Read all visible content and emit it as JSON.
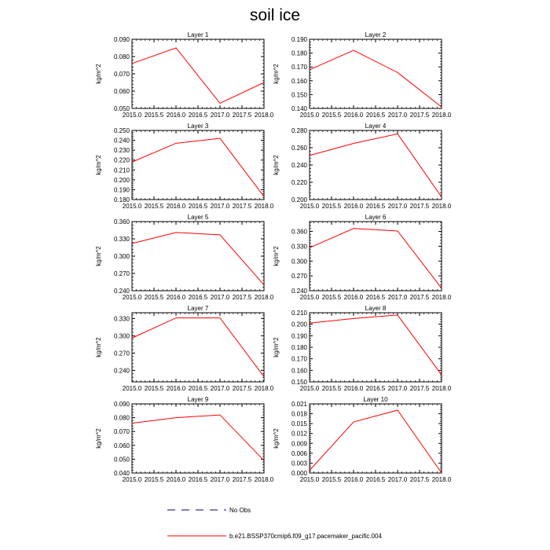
{
  "title": "soil ice",
  "legend": {
    "entries": [
      {
        "label": "No Obs",
        "color": "#000080",
        "dash": "dashed"
      },
      {
        "label": "b.e21.BSSP370cmip6.f09_g17.pacemaker_pacific.004",
        "color": "#ff0000",
        "dash": "solid"
      }
    ]
  },
  "chart_data": [
    {
      "type": "line",
      "title": "Layer 1",
      "ylabel": "kg/m^2",
      "x": [
        2015.0,
        2016.0,
        2017.0,
        2018.0
      ],
      "xticks": [
        2015.0,
        2015.5,
        2016.0,
        2016.5,
        2017.0,
        2017.5,
        2018.0
      ],
      "xtick_labels": [
        "2015.0",
        "2015.5",
        "2016.0",
        "2016.5",
        "2017.0",
        "2017.5",
        "2018.0"
      ],
      "ylim": [
        0.05,
        0.09
      ],
      "yticks": [
        0.05,
        0.06,
        0.07,
        0.08,
        0.09
      ],
      "ytick_labels": [
        "0.050",
        "0.060",
        "0.070",
        "0.080",
        "0.090"
      ],
      "series": [
        {
          "values": [
            0.076,
            0.085,
            0.053,
            0.065
          ],
          "color": "#ff0000"
        }
      ]
    },
    {
      "type": "line",
      "title": "Layer 2",
      "ylabel": "kg/m^2",
      "x": [
        2015.0,
        2016.0,
        2017.0,
        2018.0
      ],
      "xticks": [
        2015.0,
        2015.5,
        2016.0,
        2016.5,
        2017.0,
        2017.5,
        2018.0
      ],
      "xtick_labels": [
        "2015.0",
        "2015.5",
        "2016.0",
        "2016.5",
        "2017.0",
        "2017.5",
        "2018.0"
      ],
      "ylim": [
        0.14,
        0.19
      ],
      "yticks": [
        0.14,
        0.15,
        0.16,
        0.17,
        0.18,
        0.19
      ],
      "ytick_labels": [
        "0.140",
        "0.150",
        "0.160",
        "0.170",
        "0.180",
        "0.190"
      ],
      "series": [
        {
          "values": [
            0.168,
            0.182,
            0.166,
            0.141
          ],
          "color": "#ff0000"
        }
      ]
    },
    {
      "type": "line",
      "title": "Layer 3",
      "ylabel": "kg/m^2",
      "x": [
        2015.0,
        2016.0,
        2017.0,
        2018.0
      ],
      "xticks": [
        2015.0,
        2015.5,
        2016.0,
        2016.5,
        2017.0,
        2017.5,
        2018.0
      ],
      "xtick_labels": [
        "2015.0",
        "2015.5",
        "2016.0",
        "2016.5",
        "2017.0",
        "2017.5",
        "2018.0"
      ],
      "ylim": [
        0.18,
        0.25
      ],
      "yticks": [
        0.18,
        0.19,
        0.2,
        0.21,
        0.22,
        0.23,
        0.24,
        0.25
      ],
      "ytick_labels": [
        "0.180",
        "0.190",
        "0.200",
        "0.210",
        "0.220",
        "0.230",
        "0.240",
        "0.250"
      ],
      "series": [
        {
          "values": [
            0.218,
            0.237,
            0.242,
            0.183
          ],
          "color": "#ff0000"
        }
      ]
    },
    {
      "type": "line",
      "title": "Layer 4",
      "ylabel": "kg/m^2",
      "x": [
        2015.0,
        2016.0,
        2017.0,
        2018.0
      ],
      "xticks": [
        2015.0,
        2015.5,
        2016.0,
        2016.5,
        2017.0,
        2017.5,
        2018.0
      ],
      "xtick_labels": [
        "2015.0",
        "2015.5",
        "2016.0",
        "2016.5",
        "2017.0",
        "2017.5",
        "2018.0"
      ],
      "ylim": [
        0.2,
        0.28
      ],
      "yticks": [
        0.2,
        0.22,
        0.24,
        0.26,
        0.28
      ],
      "ytick_labels": [
        "0.200",
        "0.220",
        "0.240",
        "0.260",
        "0.280"
      ],
      "series": [
        {
          "values": [
            0.251,
            0.265,
            0.276,
            0.203
          ],
          "color": "#ff0000"
        }
      ]
    },
    {
      "type": "line",
      "title": "Layer 5",
      "ylabel": "kg/m^2",
      "x": [
        2015.0,
        2016.0,
        2017.0,
        2018.0
      ],
      "xticks": [
        2015.0,
        2015.5,
        2016.0,
        2016.5,
        2017.0,
        2017.5,
        2018.0
      ],
      "xtick_labels": [
        "2015.0",
        "2015.5",
        "2016.0",
        "2016.5",
        "2017.0",
        "2017.5",
        "2018.0"
      ],
      "ylim": [
        0.24,
        0.36
      ],
      "yticks": [
        0.24,
        0.27,
        0.3,
        0.33,
        0.36
      ],
      "ytick_labels": [
        "0.240",
        "0.270",
        "0.300",
        "0.330",
        "0.360"
      ],
      "series": [
        {
          "values": [
            0.322,
            0.341,
            0.337,
            0.25
          ],
          "color": "#ff0000"
        }
      ]
    },
    {
      "type": "line",
      "title": "Layer 6",
      "ylabel": "kg/m^2",
      "x": [
        2015.0,
        2016.0,
        2017.0,
        2018.0
      ],
      "xticks": [
        2015.0,
        2015.5,
        2016.0,
        2016.5,
        2017.0,
        2017.5,
        2018.0
      ],
      "xtick_labels": [
        "2015.0",
        "2015.5",
        "2016.0",
        "2016.5",
        "2017.0",
        "2017.5",
        "2018.0"
      ],
      "ylim": [
        0.24,
        0.38
      ],
      "yticks": [
        0.24,
        0.27,
        0.3,
        0.33,
        0.36
      ],
      "ytick_labels": [
        "0.240",
        "0.270",
        "0.300",
        "0.330",
        "0.360"
      ],
      "series": [
        {
          "values": [
            0.327,
            0.366,
            0.361,
            0.245
          ],
          "color": "#ff0000"
        }
      ]
    },
    {
      "type": "line",
      "title": "Layer 7",
      "ylabel": "kg/m^2",
      "x": [
        2015.0,
        2016.0,
        2017.0,
        2018.0
      ],
      "xticks": [
        2015.0,
        2015.5,
        2016.0,
        2016.5,
        2017.0,
        2017.5,
        2018.0
      ],
      "xtick_labels": [
        "2015.0",
        "2015.5",
        "2016.0",
        "2016.5",
        "2017.0",
        "2017.5",
        "2018.0"
      ],
      "ylim": [
        0.22,
        0.34
      ],
      "yticks": [
        0.24,
        0.27,
        0.3,
        0.33
      ],
      "ytick_labels": [
        "0.240",
        "0.270",
        "0.300",
        "0.330"
      ],
      "series": [
        {
          "values": [
            0.296,
            0.331,
            0.331,
            0.229
          ],
          "color": "#ff0000"
        }
      ]
    },
    {
      "type": "line",
      "title": "Layer 8",
      "ylabel": "kg/m^2",
      "x": [
        2015.0,
        2016.0,
        2017.0,
        2018.0
      ],
      "xticks": [
        2015.0,
        2015.5,
        2016.0,
        2016.5,
        2017.0,
        2017.5,
        2018.0
      ],
      "xtick_labels": [
        "2015.0",
        "2015.5",
        "2016.0",
        "2016.5",
        "2017.0",
        "2017.5",
        "2018.0"
      ],
      "ylim": [
        0.15,
        0.21
      ],
      "yticks": [
        0.15,
        0.16,
        0.17,
        0.18,
        0.19,
        0.2,
        0.21
      ],
      "ytick_labels": [
        "0.150",
        "0.160",
        "0.170",
        "0.180",
        "0.190",
        "0.200",
        "0.210"
      ],
      "series": [
        {
          "values": [
            0.201,
            0.205,
            0.208,
            0.156
          ],
          "color": "#ff0000"
        }
      ]
    },
    {
      "type": "line",
      "title": "Layer 9",
      "ylabel": "kg/m^2",
      "x": [
        2015.0,
        2016.0,
        2017.0,
        2018.0
      ],
      "xticks": [
        2015.0,
        2015.5,
        2016.0,
        2016.5,
        2017.0,
        2017.5,
        2018.0
      ],
      "xtick_labels": [
        "2015.0",
        "2015.5",
        "2016.0",
        "2016.5",
        "2017.0",
        "2017.5",
        "2018.0"
      ],
      "ylim": [
        0.04,
        0.09
      ],
      "yticks": [
        0.04,
        0.05,
        0.06,
        0.07,
        0.08,
        0.09
      ],
      "ytick_labels": [
        "0.040",
        "0.050",
        "0.060",
        "0.070",
        "0.080",
        "0.090"
      ],
      "series": [
        {
          "values": [
            0.076,
            0.08,
            0.082,
            0.049
          ],
          "color": "#ff0000"
        }
      ]
    },
    {
      "type": "line",
      "title": "Layer 10",
      "ylabel": "kg/m^2",
      "x": [
        2015.0,
        2016.0,
        2017.0,
        2018.0
      ],
      "xticks": [
        2015.0,
        2015.5,
        2016.0,
        2016.5,
        2017.0,
        2017.5,
        2018.0
      ],
      "xtick_labels": [
        "2015.0",
        "2015.5",
        "2016.0",
        "2016.5",
        "2017.0",
        "2017.5",
        "2018.0"
      ],
      "ylim": [
        0.0,
        0.021
      ],
      "yticks": [
        0.0,
        0.003,
        0.006,
        0.009,
        0.012,
        0.015,
        0.018,
        0.021
      ],
      "ytick_labels": [
        "0.000",
        "0.003",
        "0.006",
        "0.009",
        "0.012",
        "0.015",
        "0.018",
        "0.021"
      ],
      "series": [
        {
          "values": [
            0.0008,
            0.0155,
            0.0191,
            0.0
          ],
          "color": "#ff0000"
        }
      ]
    }
  ]
}
